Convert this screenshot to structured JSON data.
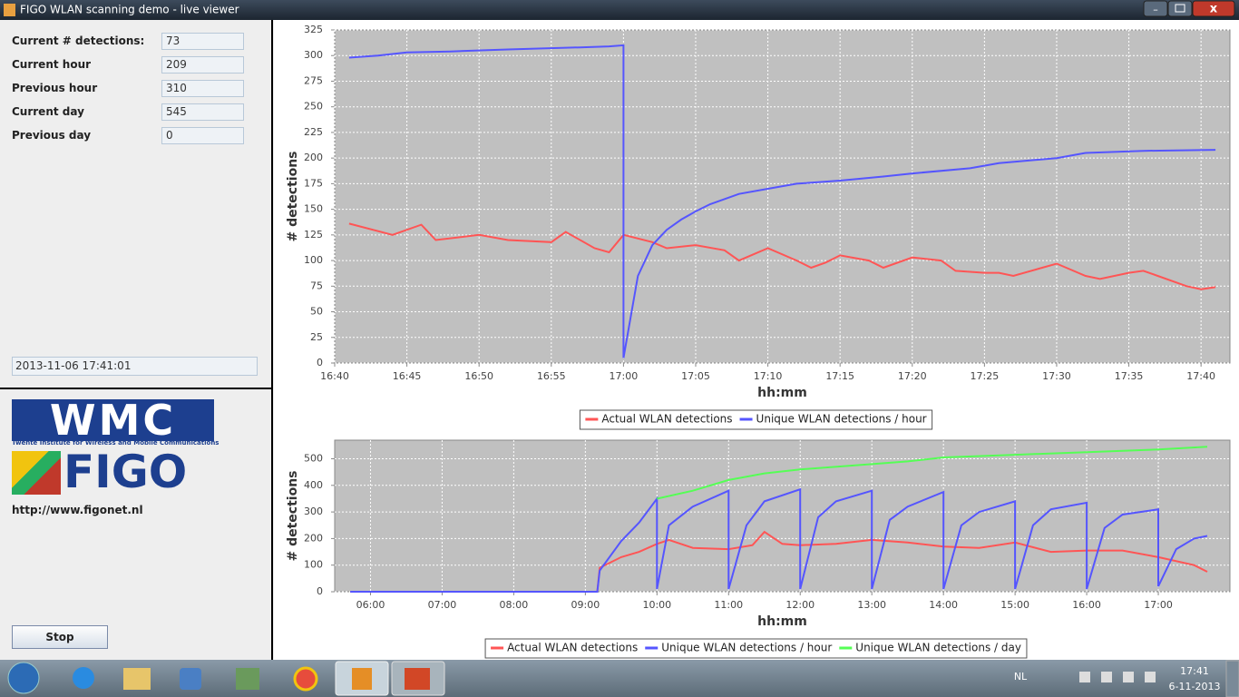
{
  "window": {
    "title": "FIGO WLAN scanning demo - live viewer"
  },
  "panel": {
    "fields": [
      {
        "label": "Current # detections:",
        "value": 73
      },
      {
        "label": "Current hour",
        "value": 209
      },
      {
        "label": "Previous hour",
        "value": 310
      },
      {
        "label": "Current day",
        "value": 545
      },
      {
        "label": "Previous day",
        "value": 0
      }
    ],
    "timestamp": "2013-11-06 17:41:01",
    "logo": {
      "wmc": "WMC",
      "wmc_subtitle": "Twente Institute for Wireless and Mobile Communications",
      "figo": "FIGO"
    },
    "url": "http://www.figonet.nl",
    "button": "Stop"
  },
  "chart_data": [
    {
      "type": "line",
      "x_label": "hh:mm",
      "y_label": "# detections",
      "grid": true,
      "legend": "bottom",
      "xlim": [
        "16:40",
        "17:42"
      ],
      "xticks": [
        "16:40",
        "16:45",
        "16:50",
        "16:55",
        "17:00",
        "17:05",
        "17:10",
        "17:15",
        "17:20",
        "17:25",
        "17:30",
        "17:35",
        "17:40"
      ],
      "ylim": [
        0,
        325
      ],
      "yticks": [
        0,
        25,
        50,
        75,
        100,
        125,
        150,
        175,
        200,
        225,
        250,
        275,
        300,
        325
      ],
      "series": [
        {
          "name": "Actual WLAN detections",
          "color": "#ff5555",
          "x": [
            "16:41",
            "16:44",
            "16:46",
            "16:47",
            "16:50",
            "16:52",
            "16:55",
            "16:56",
            "16:58",
            "16:59",
            "17:00",
            "17:02",
            "17:03",
            "17:05",
            "17:07",
            "17:08",
            "17:10",
            "17:12",
            "17:13",
            "17:14",
            "17:15",
            "17:17",
            "17:18",
            "17:20",
            "17:22",
            "17:23",
            "17:25",
            "17:26",
            "17:27",
            "17:29",
            "17:30",
            "17:32",
            "17:33",
            "17:35",
            "17:36",
            "17:37",
            "17:39",
            "17:40",
            "17:41"
          ],
          "values": [
            136,
            125,
            135,
            120,
            125,
            120,
            118,
            128,
            112,
            108,
            125,
            118,
            112,
            115,
            110,
            100,
            112,
            100,
            93,
            98,
            105,
            100,
            93,
            103,
            100,
            90,
            88,
            88,
            85,
            93,
            97,
            85,
            82,
            88,
            90,
            85,
            75,
            72,
            74
          ]
        },
        {
          "name": "Unique WLAN detections / hour",
          "color": "#5555ff",
          "x": [
            "16:41",
            "16:43",
            "16:45",
            "16:48",
            "16:52",
            "16:57",
            "16:59",
            "17:00",
            "17:00",
            "17:01",
            "17:02",
            "17:03",
            "17:04",
            "17:05",
            "17:06",
            "17:08",
            "17:10",
            "17:12",
            "17:15",
            "17:18",
            "17:20",
            "17:24",
            "17:26",
            "17:30",
            "17:32",
            "17:36",
            "17:41"
          ],
          "values": [
            298,
            300,
            303,
            304,
            306,
            308,
            309,
            310,
            5,
            85,
            115,
            130,
            140,
            148,
            155,
            165,
            170,
            175,
            178,
            182,
            185,
            190,
            195,
            200,
            205,
            207,
            208
          ]
        }
      ]
    },
    {
      "type": "line",
      "x_label": "hh:mm",
      "y_label": "# detections",
      "grid": true,
      "legend": "bottom",
      "xlim": [
        "05:30",
        "18:00"
      ],
      "xticks": [
        "06:00",
        "07:00",
        "08:00",
        "09:00",
        "10:00",
        "11:00",
        "12:00",
        "13:00",
        "14:00",
        "15:00",
        "16:00",
        "17:00"
      ],
      "ylim": [
        0,
        570
      ],
      "yticks": [
        0,
        100,
        200,
        300,
        400,
        500
      ],
      "series": [
        {
          "name": "Actual WLAN detections",
          "color": "#ff5555",
          "x": [
            "05:43",
            "09:10",
            "09:12",
            "09:30",
            "09:45",
            "10:00",
            "10:10",
            "10:30",
            "11:00",
            "11:20",
            "11:30",
            "11:45",
            "12:00",
            "12:30",
            "13:00",
            "13:30",
            "14:00",
            "14:30",
            "15:00",
            "15:30",
            "16:00",
            "16:30",
            "17:00",
            "17:30",
            "17:41"
          ],
          "values": [
            0,
            0,
            90,
            130,
            150,
            180,
            195,
            165,
            160,
            175,
            225,
            180,
            175,
            180,
            195,
            185,
            170,
            165,
            185,
            150,
            155,
            155,
            130,
            100,
            75
          ]
        },
        {
          "name": "Unique WLAN detections / hour",
          "color": "#5555ff",
          "x": [
            "05:43",
            "09:10",
            "09:12",
            "09:30",
            "09:45",
            "10:00",
            "10:00",
            "10:10",
            "10:30",
            "11:00",
            "11:00",
            "11:15",
            "11:30",
            "12:00",
            "12:00",
            "12:15",
            "12:30",
            "13:00",
            "13:00",
            "13:15",
            "13:30",
            "14:00",
            "14:00",
            "14:15",
            "14:30",
            "15:00",
            "15:00",
            "15:15",
            "15:30",
            "16:00",
            "16:00",
            "16:15",
            "16:30",
            "17:00",
            "17:00",
            "17:15",
            "17:30",
            "17:41"
          ],
          "values": [
            0,
            0,
            80,
            190,
            260,
            350,
            10,
            250,
            320,
            380,
            10,
            250,
            340,
            385,
            10,
            280,
            340,
            380,
            10,
            270,
            320,
            375,
            10,
            250,
            300,
            340,
            10,
            250,
            310,
            335,
            10,
            240,
            290,
            310,
            20,
            160,
            200,
            210
          ]
        },
        {
          "name": "Unique WLAN detections / day",
          "color": "#55ff55",
          "x": [
            "10:00",
            "10:30",
            "11:00",
            "11:30",
            "12:00",
            "13:00",
            "13:30",
            "14:00",
            "15:00",
            "16:00",
            "17:00",
            "17:41"
          ],
          "values": [
            350,
            380,
            420,
            445,
            460,
            480,
            490,
            505,
            515,
            525,
            535,
            545
          ]
        }
      ]
    }
  ],
  "taskbar": {
    "language": "NL",
    "time": "17:41",
    "date": "6-11-2013"
  }
}
